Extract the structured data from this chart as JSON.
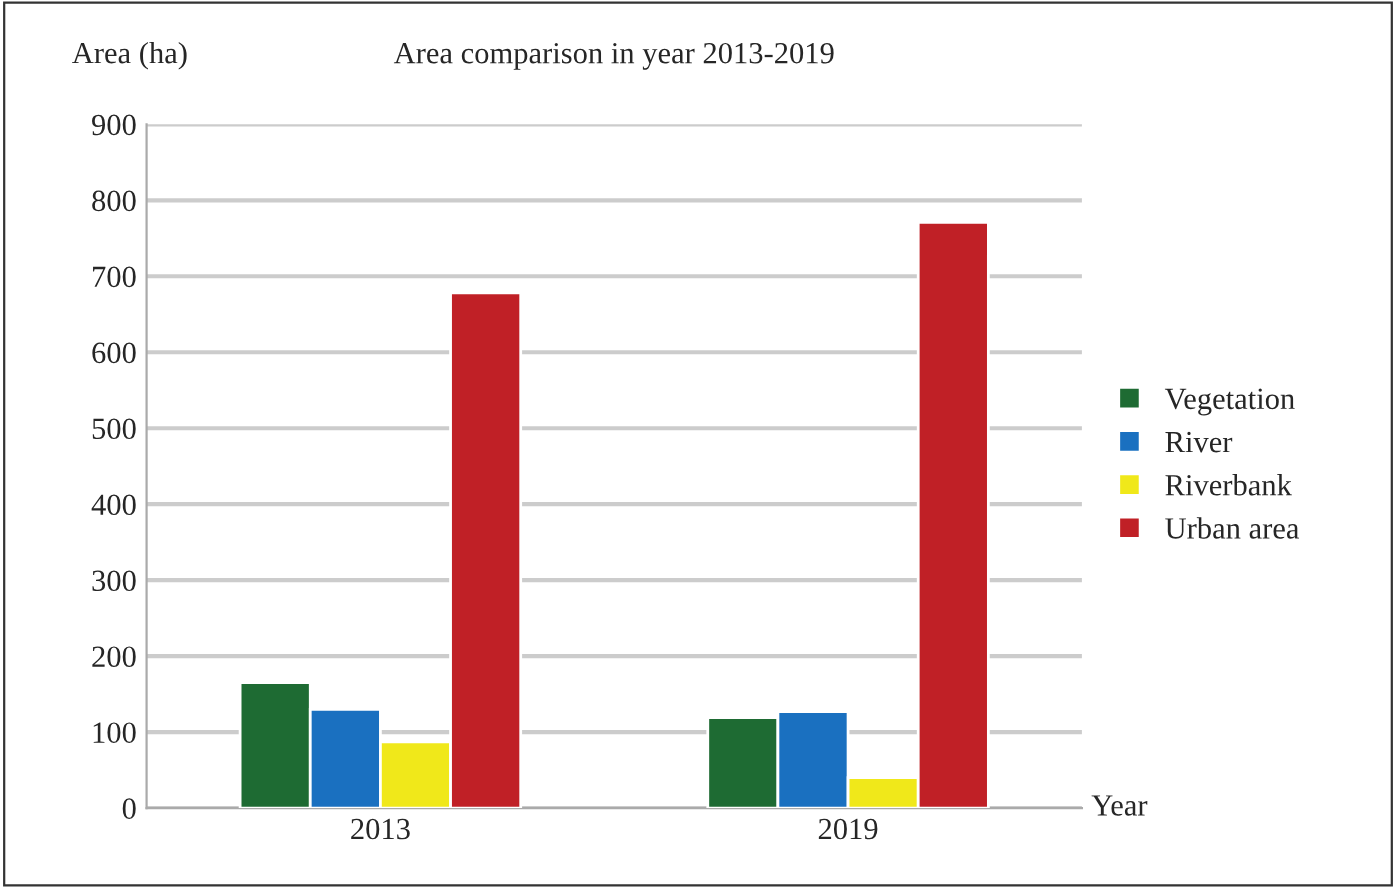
{
  "chart_data": {
    "type": "bar",
    "title": "Area comparison in year 2013-2019",
    "ylabel": "Area (ha)",
    "xlabel": "Year",
    "categories": [
      "2013",
      "2019"
    ],
    "series": [
      {
        "name": "Vegetation",
        "color": "#1e6b33",
        "values": [
          165,
          119
        ]
      },
      {
        "name": "River",
        "color": "#1a70c0",
        "values": [
          130,
          127
        ]
      },
      {
        "name": "Riverbank",
        "color": "#f0e81a",
        "values": [
          87,
          40
        ]
      },
      {
        "name": "Urban area",
        "color": "#c02026",
        "values": [
          678,
          771
        ]
      }
    ],
    "ylim": [
      0,
      900
    ],
    "yticks": [
      0,
      100,
      200,
      300,
      400,
      500,
      600,
      700,
      800,
      900
    ],
    "grid": "y",
    "legend": "right"
  }
}
